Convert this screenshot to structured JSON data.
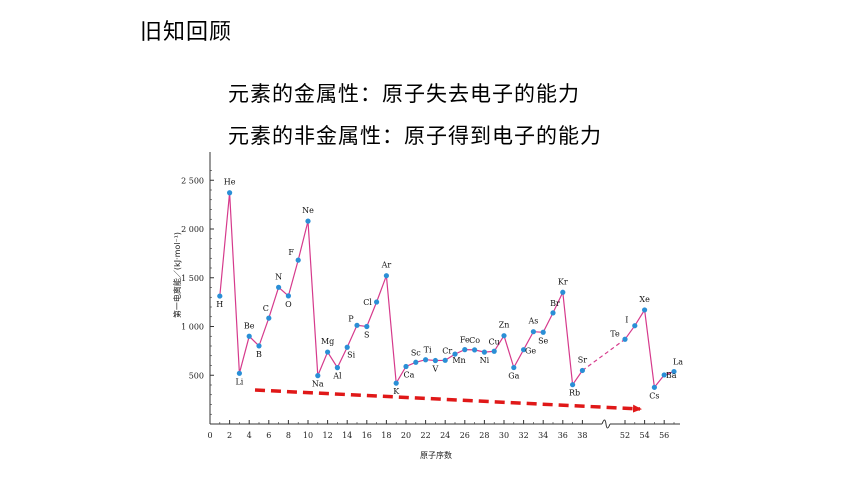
{
  "slide": {
    "title": "旧知回顾",
    "metallic_definition": "元素的金属性：原子失去电子的能力",
    "nonmetallic_definition": "元素的非金属性：原子得到电子的能力"
  },
  "colors": {
    "line": "#d63a8c",
    "point": "#2a8fd6",
    "trend_arrow": "#e01818",
    "axis": "#333333"
  },
  "chart_data": {
    "type": "line",
    "xlabel": "原子序数",
    "ylabel": "第一电离能／(kJ·mol⁻¹)",
    "ylim": [
      0,
      2600
    ],
    "yticks": [
      500,
      1000,
      1500,
      2000,
      2500
    ],
    "yticks_labels": [
      "500",
      "1 000",
      "1 500",
      "2 000",
      "2 500"
    ],
    "xticks_left": [
      0,
      2,
      4,
      6,
      8,
      10,
      12,
      14,
      16,
      18,
      20,
      22,
      24,
      26,
      28,
      30,
      32,
      34,
      36,
      38
    ],
    "xticks_right": [
      52,
      54,
      56
    ],
    "x_break": "between 38 and 52",
    "series": [
      {
        "points": [
          {
            "x": 1,
            "y": 1312,
            "label": "H"
          },
          {
            "x": 2,
            "y": 2372,
            "label": "He"
          },
          {
            "x": 3,
            "y": 520,
            "label": "Li"
          },
          {
            "x": 4,
            "y": 900,
            "label": "Be"
          },
          {
            "x": 5,
            "y": 801,
            "label": "B"
          },
          {
            "x": 6,
            "y": 1086,
            "label": "C"
          },
          {
            "x": 7,
            "y": 1402,
            "label": "N"
          },
          {
            "x": 8,
            "y": 1314,
            "label": "O"
          },
          {
            "x": 9,
            "y": 1681,
            "label": "F"
          },
          {
            "x": 10,
            "y": 2081,
            "label": "Ne"
          },
          {
            "x": 11,
            "y": 496,
            "label": "Na"
          },
          {
            "x": 12,
            "y": 738,
            "label": "Mg"
          },
          {
            "x": 13,
            "y": 578,
            "label": "Al"
          },
          {
            "x": 14,
            "y": 787,
            "label": "Si"
          },
          {
            "x": 15,
            "y": 1012,
            "label": "P"
          },
          {
            "x": 16,
            "y": 1000,
            "label": "S"
          },
          {
            "x": 17,
            "y": 1251,
            "label": "Cl"
          },
          {
            "x": 18,
            "y": 1521,
            "label": "Ar"
          },
          {
            "x": 19,
            "y": 419,
            "label": "K"
          },
          {
            "x": 20,
            "y": 590,
            "label": "Ca"
          },
          {
            "x": 21,
            "y": 633,
            "label": "Sc"
          },
          {
            "x": 22,
            "y": 659,
            "label": "Ti"
          },
          {
            "x": 23,
            "y": 651,
            "label": "V"
          },
          {
            "x": 24,
            "y": 653,
            "label": "Cr"
          },
          {
            "x": 25,
            "y": 717,
            "label": "Mn"
          },
          {
            "x": 26,
            "y": 763,
            "label": "Fe"
          },
          {
            "x": 27,
            "y": 760,
            "label": "Co"
          },
          {
            "x": 28,
            "y": 737,
            "label": "Ni"
          },
          {
            "x": 29,
            "y": 746,
            "label": "Cu"
          },
          {
            "x": 30,
            "y": 906,
            "label": "Zn"
          },
          {
            "x": 31,
            "y": 579,
            "label": "Ga"
          },
          {
            "x": 32,
            "y": 762,
            "label": "Ge"
          },
          {
            "x": 33,
            "y": 947,
            "label": "As"
          },
          {
            "x": 34,
            "y": 941,
            "label": "Se"
          },
          {
            "x": 35,
            "y": 1140,
            "label": "Br"
          },
          {
            "x": 36,
            "y": 1351,
            "label": "Kr"
          },
          {
            "x": 37,
            "y": 403,
            "label": "Rb"
          },
          {
            "x": 38,
            "y": 549,
            "label": "Sr"
          },
          {
            "x": 52,
            "y": 869,
            "label": "Te"
          },
          {
            "x": 53,
            "y": 1008,
            "label": "I"
          },
          {
            "x": 54,
            "y": 1170,
            "label": "Xe"
          },
          {
            "x": 55,
            "y": 376,
            "label": "Cs"
          },
          {
            "x": 56,
            "y": 503,
            "label": "Ba"
          },
          {
            "x": 57,
            "y": 538,
            "label": "La"
          }
        ]
      }
    ]
  }
}
